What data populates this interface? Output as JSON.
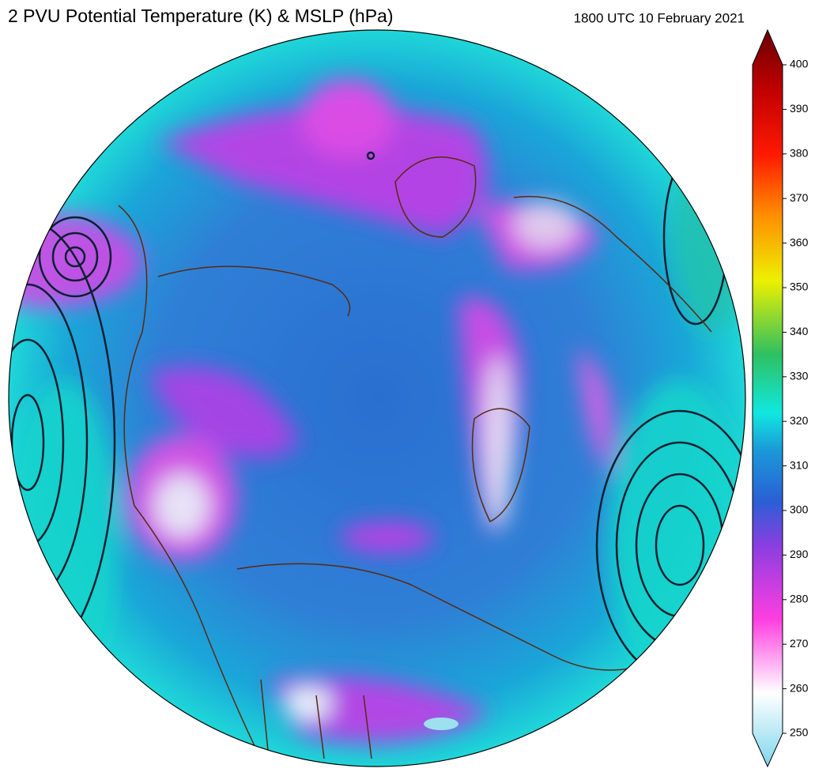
{
  "title": "2 PVU Potential Temperature (K) & MSLP (hPa)",
  "timestamp": "1800 UTC 10 February 2021",
  "colorbar": {
    "lim": [
      250,
      400
    ],
    "ticks": [
      250,
      260,
      270,
      280,
      290,
      300,
      310,
      320,
      330,
      340,
      350,
      360,
      370,
      380,
      390,
      400
    ]
  }
}
